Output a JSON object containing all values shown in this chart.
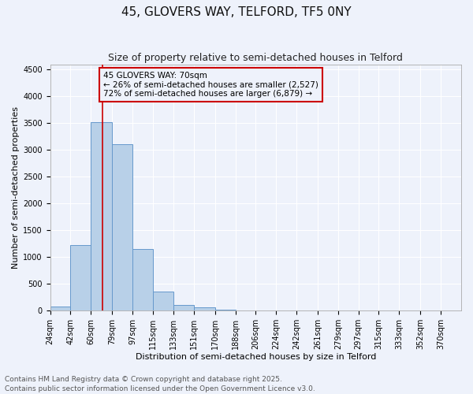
{
  "title": "45, GLOVERS WAY, TELFORD, TF5 0NY",
  "subtitle": "Size of property relative to semi-detached houses in Telford",
  "xlabel": "Distribution of semi-detached houses by size in Telford",
  "ylabel": "Number of semi-detached properties",
  "bin_edges": [
    24,
    42,
    60,
    79,
    97,
    115,
    133,
    151,
    170,
    188,
    206,
    224,
    242,
    261,
    279,
    297,
    315,
    333,
    352,
    370,
    388
  ],
  "bar_heights": [
    75,
    1220,
    3520,
    3110,
    1150,
    360,
    100,
    55,
    20,
    5,
    3,
    0,
    0,
    0,
    0,
    0,
    0,
    0,
    0,
    0
  ],
  "bar_color": "#b8d0e8",
  "bar_edgecolor": "#6699cc",
  "property_line_x": 70,
  "property_line_color": "#cc0000",
  "annotation_line1": "45 GLOVERS WAY: 70sqm",
  "annotation_line2": "← 26% of semi-detached houses are smaller (2,527)",
  "annotation_line3": "72% of semi-detached houses are larger (6,879) →",
  "annotation_box_color": "#cc0000",
  "ylim": [
    0,
    4600
  ],
  "yticks": [
    0,
    500,
    1000,
    1500,
    2000,
    2500,
    3000,
    3500,
    4000,
    4500
  ],
  "footer_line1": "Contains HM Land Registry data © Crown copyright and database right 2025.",
  "footer_line2": "Contains public sector information licensed under the Open Government Licence v3.0.",
  "background_color": "#eef2fb",
  "grid_color": "#ffffff",
  "title_fontsize": 11,
  "subtitle_fontsize": 9,
  "tick_label_fontsize": 7,
  "axis_label_fontsize": 8,
  "annotation_fontsize": 7.5,
  "footer_fontsize": 6.5
}
